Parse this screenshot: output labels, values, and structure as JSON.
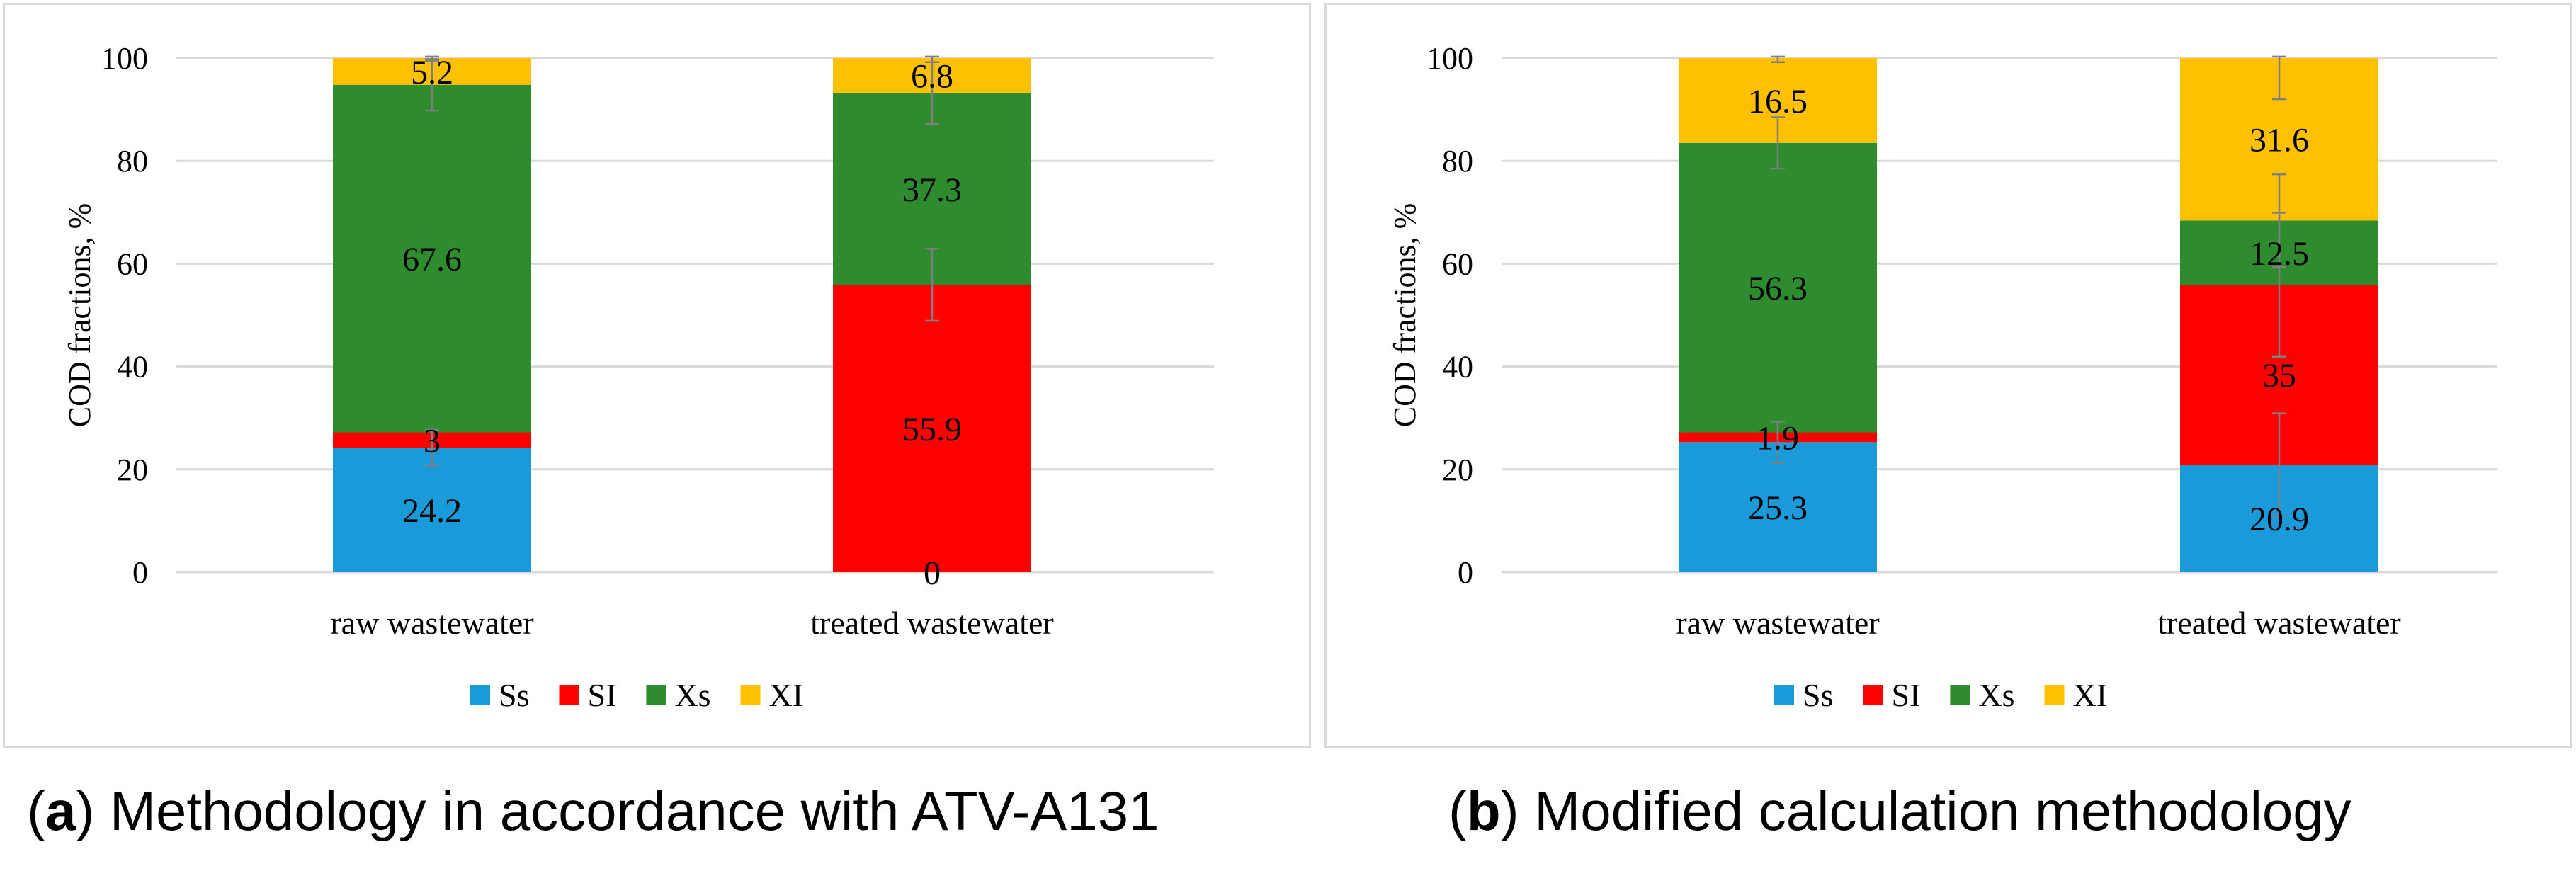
{
  "colors": {
    "Ss": "#1a9ad8",
    "SI": "#ff0000",
    "Xs": "#2e8b2e",
    "XI": "#ffc000",
    "grid": "#d9d9d9",
    "axis_text": "#000000",
    "error_bar": "#7f7f7f"
  },
  "chart_data": [
    {
      "type": "bar",
      "stacked": true,
      "title": "",
      "caption_label": "a",
      "caption_text": "Methodology in accordance with ATV-A131",
      "xlabel": "",
      "ylabel": "COD fractions, %",
      "ylim": [
        0,
        100
      ],
      "yticks": [
        "0",
        "20",
        "40",
        "60",
        "80",
        "100"
      ],
      "grid": true,
      "legend_position": "bottom",
      "categories": [
        "raw wastewater",
        "treated wastewater"
      ],
      "series": [
        {
          "name": "Ss",
          "values": [
            24.2,
            0
          ],
          "labels": [
            "24.2",
            "0"
          ],
          "errors": [
            3.5,
            0
          ]
        },
        {
          "name": "SI",
          "values": [
            3,
            55.9
          ],
          "labels": [
            "3",
            "55.9"
          ],
          "errors": [
            0,
            7.0
          ]
        },
        {
          "name": "Xs",
          "values": [
            67.6,
            37.3
          ],
          "labels": [
            "67.6",
            "37.3"
          ],
          "errors": [
            5.0,
            6.0
          ]
        },
        {
          "name": "XI",
          "values": [
            5.2,
            6.8
          ],
          "labels": [
            "5.2",
            "6.8"
          ],
          "errors": [
            0.5,
            0.8
          ]
        }
      ]
    },
    {
      "type": "bar",
      "stacked": true,
      "title": "",
      "caption_label": "b",
      "caption_text": "Modified calculation methodology",
      "xlabel": "",
      "ylabel": "COD fractions, %",
      "ylim": [
        0,
        100
      ],
      "yticks": [
        "0",
        "20",
        "40",
        "60",
        "80",
        "100"
      ],
      "grid": true,
      "legend_position": "bottom",
      "categories": [
        "raw wastewater",
        "treated wastewater"
      ],
      "series": [
        {
          "name": "Ss",
          "values": [
            25.3,
            20.9
          ],
          "labels": [
            "25.3",
            "20.9"
          ],
          "errors": [
            4.0,
            10.0
          ]
        },
        {
          "name": "SI",
          "values": [
            1.9,
            35
          ],
          "labels": [
            "1.9",
            "35"
          ],
          "errors": [
            0,
            14.0
          ]
        },
        {
          "name": "Xs",
          "values": [
            56.3,
            12.5
          ],
          "labels": [
            "56.3",
            "12.5"
          ],
          "errors": [
            5.0,
            9.0
          ]
        },
        {
          "name": "XI",
          "values": [
            16.5,
            31.6
          ],
          "labels": [
            "16.5",
            "31.6"
          ],
          "errors": [
            0.8,
            8.0
          ]
        }
      ]
    }
  ]
}
